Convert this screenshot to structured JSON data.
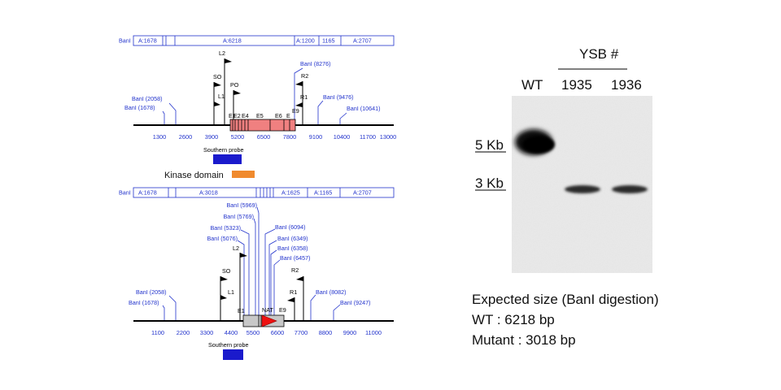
{
  "colors": {
    "label_blue": "#2233cc",
    "exon_wt": "#f08080",
    "southern_probe": "#1a1acc",
    "kinase_domain": "#f08a2e",
    "nat_marker": "#ee1111",
    "mutant_cassette": "#c8c8c8",
    "blot_background": "#eaeaea",
    "band": "#101010"
  },
  "wt_map": {
    "fragments": [
      "BanI",
      "A:1678",
      "A:6218",
      "A:1200",
      "1165",
      "A:2707"
    ],
    "ticks": [
      "1300",
      "2600",
      "3900",
      "5200",
      "6500",
      "7800",
      "9100",
      "10400",
      "11700",
      "13000"
    ],
    "site_labels": [
      "BanI (2058)",
      "BanI (1678)",
      "BanI (8276)",
      "BanI (9476)",
      "BanI (10641)"
    ],
    "primers": [
      "L2",
      "SO",
      "PO",
      "L1",
      "R2",
      "R1"
    ],
    "exons": [
      "E1",
      "E2",
      "E4",
      "E5",
      "E6",
      "E"
    ],
    "exon_extra": "E9",
    "southern_probe_label": "Southern probe"
  },
  "kinase_domain_label": "Kinase domain",
  "mut_map": {
    "fragments": [
      "BanI",
      "A:1678",
      "A:3018",
      "A:1625",
      "A:1165",
      "A:2707"
    ],
    "ticks": [
      "1100",
      "2200",
      "3300",
      "4400",
      "5500",
      "6600",
      "7700",
      "8800",
      "9900",
      "11000"
    ],
    "site_labels": [
      "BanI (5969)",
      "BanI (5769)",
      "BanI (5323)",
      "BanI (5076)",
      "BanI (6094)",
      "BanI (6349)",
      "BanI (6358)",
      "BanI (6457)",
      "BanI (2058)",
      "BanI (1678)",
      "BanI (8082)",
      "BanI (9247)"
    ],
    "primers": [
      "L2",
      "SO",
      "L1",
      "R2",
      "R1"
    ],
    "markers": [
      "E1",
      "NAT",
      "E9"
    ],
    "southern_probe_label": "Southern probe"
  },
  "blot": {
    "group_label": "YSB #",
    "lanes": [
      "WT",
      "1935",
      "1936"
    ],
    "markers": [
      "5 Kb",
      "3 Kb"
    ]
  },
  "expected": {
    "title": "Expected size (BanI digestion)",
    "wt": "WT : 6218 bp",
    "mutant": "Mutant : 3018 bp"
  }
}
